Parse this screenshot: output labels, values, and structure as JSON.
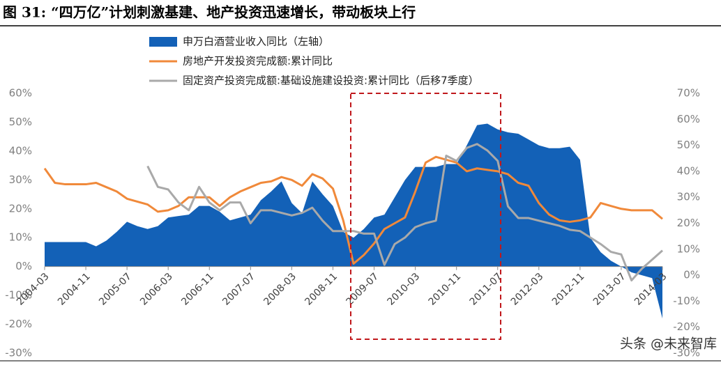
{
  "chart_data": {
    "type": "line",
    "title": "图 31:  “四万亿”计划刺激基建、地产投资迅速增长，带动板块上行",
    "watermark": "头条 @未来智库",
    "categories": [
      "2004-03",
      null,
      null,
      null,
      "2004-11",
      null,
      null,
      null,
      "2005-07",
      null,
      null,
      null,
      "2006-03",
      null,
      null,
      null,
      "2006-11",
      null,
      null,
      null,
      "2007-07",
      null,
      null,
      null,
      "2008-03",
      null,
      null,
      null,
      "2008-11",
      null,
      null,
      null,
      "2009-07",
      null,
      null,
      null,
      "2010-03",
      null,
      null,
      null,
      "2010-11",
      null,
      null,
      null,
      "2011-07",
      null,
      null,
      null,
      "2012-03",
      null,
      null,
      null,
      "2012-11",
      null,
      null,
      null,
      "2013-07",
      null,
      null,
      null,
      "2014-03"
    ],
    "series": [
      {
        "name": "申万白酒营业收入同比（左轴）",
        "type": "area",
        "color": "#1361b7",
        "values": [
          8.5,
          8.5,
          8.5,
          8.5,
          8.5,
          7,
          9,
          12,
          15.5,
          14,
          13,
          14,
          17,
          17.5,
          18,
          21,
          21,
          19,
          16,
          17,
          18,
          23,
          26,
          29.5,
          22,
          18.5,
          29.5,
          25,
          21,
          12,
          10,
          13,
          17,
          18,
          24,
          30,
          34.5,
          34.5,
          34.5,
          35.5,
          35.5,
          42,
          49,
          49.5,
          47.5,
          46.5,
          46,
          44,
          42,
          41,
          41,
          41.5,
          37,
          10,
          5,
          2,
          0,
          -2,
          -3,
          -4,
          -18
        ]
      },
      {
        "name": "房地产开发投资完成额:累计同比",
        "type": "line",
        "color": "#f0893a",
        "values": [
          34,
          29,
          28.5,
          28.5,
          28.5,
          29,
          27.5,
          26,
          23.5,
          22.5,
          21.5,
          19,
          19.5,
          21,
          24,
          24,
          24,
          21,
          24,
          26,
          27.5,
          29,
          29.5,
          31,
          30,
          28,
          32,
          30.5,
          27,
          16,
          1,
          4,
          8,
          13,
          15,
          17,
          26,
          36,
          38,
          37,
          36,
          33,
          34,
          33.5,
          33,
          32,
          29,
          28,
          22,
          18,
          16,
          15.5,
          16,
          17,
          22,
          21,
          20,
          19.5,
          19.5,
          19.5,
          16.5
        ]
      },
      {
        "name": "固定资产投资完成额:基础设施建设投资:累计同比（后移7季度）",
        "type": "line",
        "axis": "y2",
        "color": "#a9a9a9",
        "values": [
          null,
          null,
          null,
          null,
          null,
          null,
          null,
          null,
          null,
          null,
          42,
          34,
          33,
          28,
          25,
          34,
          28,
          25,
          28,
          28,
          20,
          25,
          25,
          24,
          23,
          24,
          26,
          21,
          17,
          17,
          17,
          16,
          16,
          4,
          12,
          14.5,
          18.5,
          20,
          21,
          46,
          44,
          49,
          50.5,
          48,
          44,
          26.5,
          22,
          22,
          21,
          20,
          19,
          17.5,
          17,
          14.5,
          12,
          9,
          8,
          -2,
          2.5,
          6,
          9.5
        ]
      }
    ],
    "ylim": [
      -30,
      60
    ],
    "yticks": [
      {
        "value": -30,
        "label": "-30%"
      },
      {
        "value": -20,
        "label": "-20%"
      },
      {
        "value": -10,
        "label": "-10%"
      },
      {
        "value": 0,
        "label": "0%"
      },
      {
        "value": 10,
        "label": "10%"
      },
      {
        "value": 20,
        "label": "20%"
      },
      {
        "value": 30,
        "label": "30%"
      },
      {
        "value": 40,
        "label": "40%"
      },
      {
        "value": 50,
        "label": "50%"
      },
      {
        "value": 60,
        "label": "60%"
      }
    ],
    "y2lim": [
      -30,
      70
    ],
    "y2ticks": [
      {
        "value": -30,
        "label": "-30%"
      },
      {
        "value": -20,
        "label": "-20%"
      },
      {
        "value": -10,
        "label": "-10%"
      },
      {
        "value": 0,
        "label": "0%"
      },
      {
        "value": 10,
        "label": "10%"
      },
      {
        "value": 20,
        "label": "20%"
      },
      {
        "value": 30,
        "label": "30%"
      },
      {
        "value": 40,
        "label": "40%"
      },
      {
        "value": 50,
        "label": "50%"
      },
      {
        "value": 60,
        "label": "60%"
      },
      {
        "value": 70,
        "label": "70%"
      }
    ],
    "legend": "top"
  }
}
